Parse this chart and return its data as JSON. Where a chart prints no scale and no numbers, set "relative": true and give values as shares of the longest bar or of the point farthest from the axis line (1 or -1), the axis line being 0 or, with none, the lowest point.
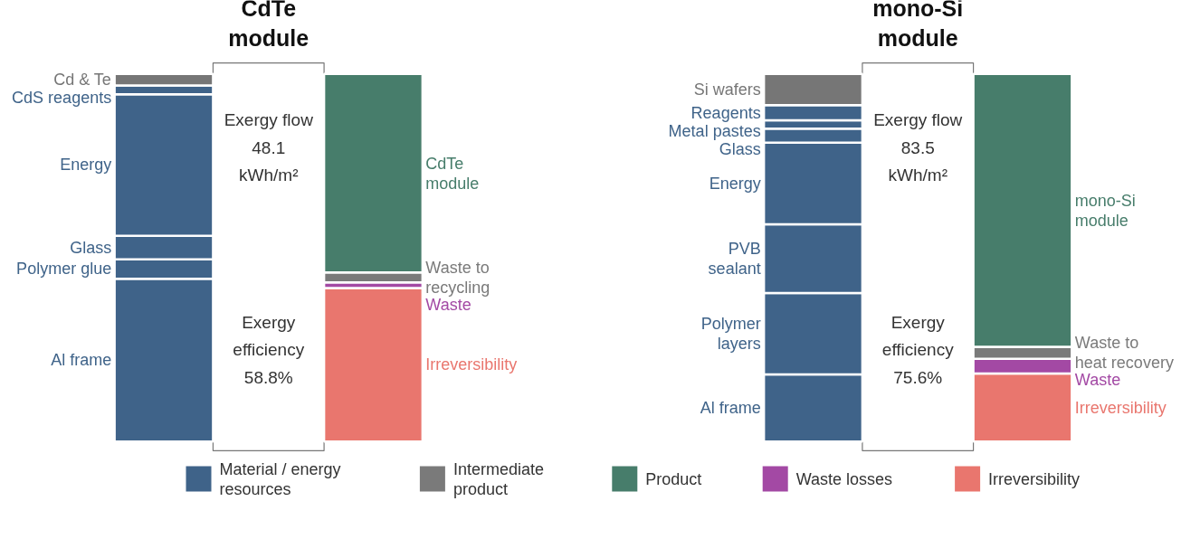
{
  "chart_data": [
    {
      "type": "bar",
      "categories": [
        null,
        null,
        null,
        null
      ],
      "stacked": true,
      "relative": true,
      "annotations": [
        "CdTe\nmodule",
        "Exergy flow\n48.1\nkWh/m²",
        "Exergy\nefficiency\n58.8%",
        "mono-Si\nmodule",
        "Exergy flow\n83.5\nkWh/m²",
        "Exergy\nefficiency\n75.6%"
      ],
      "series": [
        {
          "name": "Al frame",
          "color": "#3f6389",
          "values": [
            0.443,
            null,
            0.183,
            null
          ]
        },
        {
          "name": "Polymer glue",
          "color": "#3f6389",
          "values": [
            0.053,
            null,
            null,
            null
          ]
        },
        {
          "name": "Polymer\nlayers",
          "color": "#3f6389",
          "values": [
            null,
            null,
            0.221,
            null
          ]
        },
        {
          "name": "PVB\nsealant",
          "color": "#3f6389",
          "values": [
            null,
            null,
            0.187,
            null
          ]
        },
        {
          "name": "Glass",
          "color": "#3f6389",
          "values": [
            0.064,
            null,
            null,
            null
          ]
        },
        {
          "name": "Energy",
          "color": "#3f6389",
          "values": [
            0.385,
            null,
            0.222,
            null
          ]
        },
        {
          "name": "Glass",
          "color": "#3f6389",
          "values": [
            null,
            null,
            0.038,
            null
          ]
        },
        {
          "name": "Metal pastes",
          "color": "#3f6389",
          "values": [
            null,
            null,
            0.023,
            null
          ]
        },
        {
          "name": "Reagents",
          "color": "#3f6389",
          "values": [
            null,
            null,
            0.041,
            null
          ]
        },
        {
          "name": "CdS reagents",
          "color": "#3f6389",
          "values": [
            0.024,
            null,
            null,
            null
          ]
        },
        {
          "name": "Cd & Te",
          "color": "#767676",
          "values": [
            0.031,
            null,
            null,
            null
          ]
        },
        {
          "name": "Si wafers",
          "color": "#767676",
          "values": [
            null,
            null,
            0.085,
            null
          ]
        },
        {
          "name": "Irreversibility",
          "color": "#e9766e",
          "values": [
            null,
            0.418,
            null,
            0.185
          ]
        },
        {
          "name": "Waste",
          "color": "#a349a4",
          "values": [
            null,
            0.015,
            null,
            0.04
          ]
        },
        {
          "name": "Waste to\nrecycling",
          "color": "#7a7a7a",
          "values": [
            null,
            0.027,
            null,
            null
          ]
        },
        {
          "name": "Waste to\nheat recovery",
          "color": "#7a7a7a",
          "values": [
            null,
            null,
            null,
            0.033
          ]
        },
        {
          "name": "CdTe\nmodule",
          "color": "#477d6b",
          "values": [
            null,
            0.54,
            null,
            null
          ]
        },
        {
          "name": "mono-Si\nmodule",
          "color": "#477d6b",
          "values": [
            null,
            null,
            null,
            0.742
          ]
        }
      ]
    },
    {
      "type": "other",
      "categories": [
        "Material / energy\nresources",
        "Intermediate\nproduct",
        "Product",
        "Waste losses",
        "Irreversibility"
      ],
      "colors": [
        "#3f6389",
        "#7a7a7a",
        "#477d6b",
        "#a349a4",
        "#e9766e"
      ]
    }
  ]
}
